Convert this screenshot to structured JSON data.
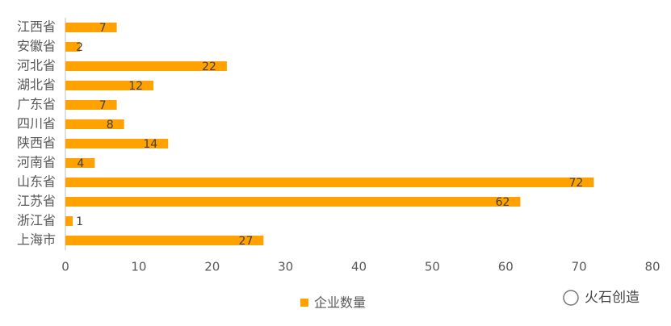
{
  "chart_data": {
    "type": "bar",
    "orientation": "horizontal",
    "categories": [
      "江西省",
      "安徽省",
      "河北省",
      "湖北省",
      "广东省",
      "四川省",
      "陕西省",
      "河南省",
      "山东省",
      "江苏省",
      "浙江省",
      "上海市"
    ],
    "series": [
      {
        "name": "企业数量",
        "color": "#FFA200",
        "values": [
          7,
          2,
          22,
          12,
          7,
          8,
          14,
          4,
          72,
          62,
          1,
          27
        ]
      }
    ],
    "xlim": [
      0,
      80
    ],
    "xticks": [
      0,
      10,
      20,
      30,
      40,
      50,
      60,
      70,
      80
    ],
    "grid": false,
    "legend": "bottom",
    "watermark": "火石创造"
  }
}
